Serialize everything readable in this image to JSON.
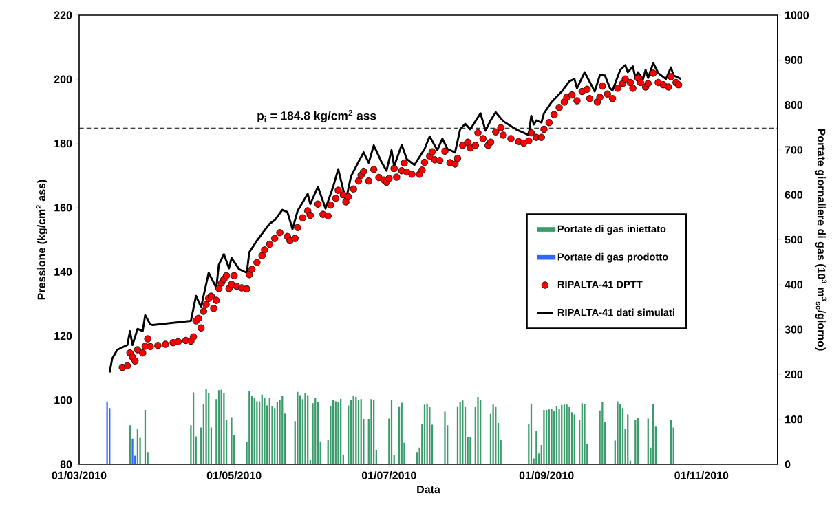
{
  "chart_data": {
    "type": "line",
    "xlabel": "Data",
    "ylabel": "Pressione (kg/cm$^{2}$ ass)",
    "y2label": "Portate giornaliere di gas (10$^{3}$ m$^{3}$$_{sc}$/giorno)",
    "xlim": [
      "2010-03-01",
      "2010-12-01"
    ],
    "xticks": [
      {
        "value": "2010-03-01",
        "label": "01/03/2010"
      },
      {
        "value": "2010-05-01",
        "label": "01/05/2010"
      },
      {
        "value": "2010-07-01",
        "label": "01/07/2010"
      },
      {
        "value": "2010-09-01",
        "label": "01/09/2010"
      },
      {
        "value": "2010-11-01",
        "label": "01/11/2010"
      }
    ],
    "ylim": [
      80,
      220
    ],
    "yticks": [
      80,
      100,
      120,
      140,
      160,
      180,
      200,
      220
    ],
    "y2lim": [
      0,
      1000
    ],
    "y2ticks": [
      0,
      100,
      200,
      300,
      400,
      500,
      600,
      700,
      800,
      900,
      1000
    ],
    "legend": "right",
    "ref_lines": [
      {
        "axis": "y",
        "value": 184.8,
        "label": "p$_{i}$ = 184.8 kg/cm$^{2}$ ass",
        "color": "#000000",
        "line_style": "dashed"
      }
    ],
    "series": [
      {
        "name": "Portate di gas iniettato",
        "type": "bar",
        "axis": "y2",
        "color": "#3a9b6b",
        "x": [
          "2010-03-21",
          "2010-03-24",
          "2010-03-25",
          "2010-03-27",
          "2010-03-28",
          "2010-04-14",
          "2010-04-15",
          "2010-04-16",
          "2010-04-18",
          "2010-04-19",
          "2010-04-20",
          "2010-04-21",
          "2010-04-22",
          "2010-04-24",
          "2010-04-25",
          "2010-04-26",
          "2010-04-27",
          "2010-04-28",
          "2010-04-30",
          "2010-05-01",
          "2010-05-06",
          "2010-05-07",
          "2010-05-08",
          "2010-05-09",
          "2010-05-10",
          "2010-05-11",
          "2010-05-12",
          "2010-05-13",
          "2010-05-14",
          "2010-05-15",
          "2010-05-16",
          "2010-05-17",
          "2010-05-18",
          "2010-05-19",
          "2010-05-20",
          "2010-05-21",
          "2010-05-25",
          "2010-05-26",
          "2010-05-27",
          "2010-05-28",
          "2010-05-29",
          "2010-05-30",
          "2010-05-31",
          "2010-06-01",
          "2010-06-02",
          "2010-06-03",
          "2010-06-04",
          "2010-06-07",
          "2010-06-08",
          "2010-06-09",
          "2010-06-10",
          "2010-06-11",
          "2010-06-12",
          "2010-06-13",
          "2010-06-15",
          "2010-06-16",
          "2010-06-17",
          "2010-06-18",
          "2010-06-19",
          "2010-06-20",
          "2010-06-21",
          "2010-06-23",
          "2010-06-24",
          "2010-06-25",
          "2010-06-26",
          "2010-07-01",
          "2010-07-02",
          "2010-07-03",
          "2010-07-05",
          "2010-07-06",
          "2010-07-07",
          "2010-07-12",
          "2010-07-13",
          "2010-07-14",
          "2010-07-15",
          "2010-07-16",
          "2010-07-17",
          "2010-07-18",
          "2010-07-23",
          "2010-07-24",
          "2010-07-28",
          "2010-07-29",
          "2010-07-30",
          "2010-07-31",
          "2010-08-01",
          "2010-08-02",
          "2010-08-04",
          "2010-08-05",
          "2010-08-06",
          "2010-08-10",
          "2010-08-11",
          "2010-08-12",
          "2010-08-13",
          "2010-08-14",
          "2010-08-25",
          "2010-08-26",
          "2010-08-27",
          "2010-08-28",
          "2010-08-29",
          "2010-08-30",
          "2010-08-31",
          "2010-09-01",
          "2010-09-02",
          "2010-09-03",
          "2010-09-04",
          "2010-09-05",
          "2010-09-06",
          "2010-09-07",
          "2010-09-08",
          "2010-09-09",
          "2010-09-10",
          "2010-09-11",
          "2010-09-12",
          "2010-09-14",
          "2010-09-15",
          "2010-09-16",
          "2010-09-17",
          "2010-09-22",
          "2010-09-23",
          "2010-09-24",
          "2010-09-28",
          "2010-09-29",
          "2010-09-30",
          "2010-10-01",
          "2010-10-02",
          "2010-10-03",
          "2010-10-04",
          "2010-10-06",
          "2010-10-07",
          "2010-10-11",
          "2010-10-12",
          "2010-10-13",
          "2010-10-14",
          "2010-10-20",
          "2010-10-21"
        ],
        "values": [
          87,
          79,
          59,
          121,
          27,
          87,
          160,
          62,
          82,
          134,
          168,
          159,
          82,
          145,
          165,
          166,
          159,
          99,
          105,
          65,
          50,
          163,
          153,
          147,
          140,
          140,
          155,
          148,
          131,
          148,
          130,
          125,
          138,
          143,
          152,
          113,
          96,
          161,
          154,
          145,
          159,
          154,
          9,
          136,
          148,
          138,
          51,
          55,
          130,
          144,
          140,
          139,
          146,
          21,
          131,
          144,
          152,
          150,
          144,
          145,
          101,
          101,
          145,
          143,
          32,
          102,
          144,
          21,
          129,
          137,
          48,
          27,
          37,
          89,
          133,
          135,
          127,
          88,
          117,
          87,
          129,
          139,
          142,
          129,
          61,
          61,
          127,
          150,
          144,
          112,
          133,
          129,
          92,
          54,
          89,
          135,
          13,
          75,
          24,
          43,
          121,
          121,
          122,
          124,
          118,
          130,
          123,
          132,
          133,
          133,
          128,
          116,
          111,
          98,
          136,
          134,
          46,
          120,
          138,
          95,
          53,
          140,
          134,
          125,
          78,
          111,
          8,
          99,
          104,
          102,
          37,
          134,
          84,
          99,
          82
        ]
      },
      {
        "name": "Portate di gas prodotto",
        "type": "bar",
        "axis": "y2",
        "color": "#3366ff",
        "x": [
          "2010-03-12",
          "2010-03-13",
          "2010-03-22",
          "2010-03-23"
        ],
        "values": [
          140,
          125,
          57,
          19
        ]
      },
      {
        "name": "RIPALTA-41 DPTT",
        "type": "scatter",
        "marker": "circle",
        "color": "#ff0000",
        "x": [
          "2010-03-18",
          "2010-03-20",
          "2010-03-21",
          "2010-03-22",
          "2010-03-23",
          "2010-03-24",
          "2010-03-26",
          "2010-03-27",
          "2010-03-28",
          "2010-03-29",
          "2010-04-01",
          "2010-04-04",
          "2010-04-07",
          "2010-04-09",
          "2010-04-12",
          "2010-04-14",
          "2010-04-15",
          "2010-04-16",
          "2010-04-17",
          "2010-04-18",
          "2010-04-19",
          "2010-04-20",
          "2010-04-21",
          "2010-04-22",
          "2010-04-23",
          "2010-04-24",
          "2010-04-25",
          "2010-04-26",
          "2010-04-27",
          "2010-04-28",
          "2010-04-29",
          "2010-04-30",
          "2010-05-01",
          "2010-05-02",
          "2010-05-04",
          "2010-05-06",
          "2010-05-07",
          "2010-05-08",
          "2010-05-10",
          "2010-05-12",
          "2010-05-13",
          "2010-05-15",
          "2010-05-17",
          "2010-05-19",
          "2010-05-22",
          "2010-05-23",
          "2010-05-25",
          "2010-05-26",
          "2010-05-28",
          "2010-05-30",
          "2010-05-31",
          "2010-06-03",
          "2010-06-05",
          "2010-06-07",
          "2010-06-08",
          "2010-06-10",
          "2010-06-11",
          "2010-06-13",
          "2010-06-14",
          "2010-06-15",
          "2010-06-17",
          "2010-06-19",
          "2010-06-20",
          "2010-06-21",
          "2010-06-23",
          "2010-06-25",
          "2010-06-27",
          "2010-06-29",
          "2010-06-30",
          "2010-07-01",
          "2010-07-03",
          "2010-07-04",
          "2010-07-06",
          "2010-07-07",
          "2010-07-08",
          "2010-07-10",
          "2010-07-13",
          "2010-07-14",
          "2010-07-15",
          "2010-07-17",
          "2010-07-18",
          "2010-07-19",
          "2010-07-21",
          "2010-07-23",
          "2010-07-25",
          "2010-07-27",
          "2010-07-28",
          "2010-07-30",
          "2010-08-01",
          "2010-08-02",
          "2010-08-04",
          "2010-08-05",
          "2010-08-07",
          "2010-08-09",
          "2010-08-10",
          "2010-08-12",
          "2010-08-14",
          "2010-08-15",
          "2010-08-18",
          "2010-08-21",
          "2010-08-23",
          "2010-08-25",
          "2010-08-26",
          "2010-08-28",
          "2010-08-30",
          "2010-08-31",
          "2010-09-02",
          "2010-09-04",
          "2010-09-06",
          "2010-09-08",
          "2010-09-09",
          "2010-09-11",
          "2010-09-13",
          "2010-09-15",
          "2010-09-17",
          "2010-09-18",
          "2010-09-21",
          "2010-09-22",
          "2010-09-23",
          "2010-09-25",
          "2010-09-27",
          "2010-09-29",
          "2010-10-01",
          "2010-10-02",
          "2010-10-04",
          "2010-10-05",
          "2010-10-07",
          "2010-10-08",
          "2010-10-10",
          "2010-10-11",
          "2010-10-13",
          "2010-10-15",
          "2010-10-17",
          "2010-10-19",
          "2010-10-20",
          "2010-10-22",
          "2010-10-23"
        ],
        "values": [
          110.2,
          110.7,
          114.7,
          113.4,
          112.2,
          115.7,
          114.7,
          116.8,
          119.1,
          116.7,
          117.0,
          117.4,
          117.9,
          118.2,
          118.6,
          118.4,
          119.7,
          124.7,
          125.5,
          122.5,
          127.7,
          129.8,
          131.7,
          132.4,
          128.6,
          131.1,
          134.8,
          136.5,
          137.7,
          138.8,
          134.8,
          136.1,
          138.8,
          135.5,
          135.0,
          134.7,
          139.1,
          140.8,
          142.9,
          145.0,
          146.8,
          148.6,
          150.4,
          152.2,
          151.0,
          149.7,
          150.4,
          153.8,
          156.8,
          159.0,
          157.6,
          161.1,
          157.9,
          157.4,
          160.8,
          162.9,
          165.4,
          164.0,
          161.8,
          163.4,
          165.8,
          168.3,
          170.1,
          171.3,
          168.3,
          171.9,
          169.4,
          168.6,
          167.9,
          169.1,
          172.2,
          169.5,
          171.5,
          173.9,
          171.1,
          170.4,
          170.4,
          171.7,
          174.1,
          176.1,
          177.4,
          174.9,
          174.7,
          177.6,
          174.0,
          173.6,
          175.4,
          179.4,
          180.4,
          178.6,
          179.4,
          183.3,
          181.5,
          179.4,
          180.4,
          183.6,
          184.9,
          182.6,
          181.5,
          180.6,
          180.1,
          180.8,
          183.3,
          181.9,
          181.9,
          184.4,
          186.5,
          189.0,
          191.2,
          192.9,
          194.4,
          195.1,
          193.3,
          196.2,
          196.9,
          194.0,
          192.9,
          194.4,
          197.9,
          195.4,
          194.0,
          197.2,
          198.7,
          200.1,
          199.0,
          197.2,
          200.4,
          199.0,
          197.6,
          198.7,
          201.9,
          199.0,
          198.3,
          197.6,
          200.8,
          199.0,
          198.3
        ]
      },
      {
        "name": "RIPALTA-41 dati simulati",
        "marker": "none",
        "color": "#000000",
        "x": [
          "2010-03-13",
          "2010-03-14",
          "2010-03-16",
          "2010-03-20",
          "2010-03-21",
          "2010-03-22",
          "2010-03-24",
          "2010-03-26",
          "2010-03-27",
          "2010-03-29",
          "2010-03-30",
          "2010-04-14",
          "2010-04-16",
          "2010-04-18",
          "2010-04-21",
          "2010-04-24",
          "2010-04-25",
          "2010-04-27",
          "2010-04-29",
          "2010-04-30",
          "2010-05-03",
          "2010-05-06",
          "2010-05-07",
          "2010-05-10",
          "2010-05-13",
          "2010-05-15",
          "2010-05-17",
          "2010-05-20",
          "2010-05-22",
          "2010-05-24",
          "2010-05-26",
          "2010-05-30",
          "2010-05-31",
          "2010-06-03",
          "2010-06-06",
          "2010-06-09",
          "2010-06-11",
          "2010-06-14",
          "2010-06-16",
          "2010-06-19",
          "2010-06-21",
          "2010-06-23",
          "2010-06-25",
          "2010-06-28",
          "2010-06-30",
          "2010-07-02",
          "2010-07-03",
          "2010-07-06",
          "2010-07-08",
          "2010-07-11",
          "2010-07-15",
          "2010-07-17",
          "2010-07-20",
          "2010-07-22",
          "2010-07-24",
          "2010-07-27",
          "2010-07-29",
          "2010-07-31",
          "2010-08-02",
          "2010-08-06",
          "2010-08-08",
          "2010-08-10",
          "2010-08-12",
          "2010-08-15",
          "2010-08-20",
          "2010-08-25",
          "2010-08-26",
          "2010-08-27",
          "2010-08-28",
          "2010-08-30",
          "2010-08-31",
          "2010-09-03",
          "2010-09-07",
          "2010-09-10",
          "2010-09-12",
          "2010-09-13",
          "2010-09-16",
          "2010-09-20",
          "2010-09-22",
          "2010-09-24",
          "2010-09-26",
          "2010-09-27",
          "2010-09-30",
          "2010-10-02",
          "2010-10-03",
          "2010-10-05",
          "2010-10-06",
          "2010-10-07",
          "2010-10-09",
          "2010-10-10",
          "2010-10-11",
          "2010-10-13",
          "2010-10-15",
          "2010-10-18",
          "2010-10-20",
          "2010-10-21",
          "2010-10-24"
        ],
        "values": [
          108.6,
          112.9,
          115.7,
          117.2,
          121.5,
          117.2,
          122.2,
          121.5,
          126.5,
          123.6,
          123.4,
          124.7,
          132.5,
          129.0,
          139.7,
          135.0,
          142.2,
          145.5,
          141.1,
          144.3,
          140.8,
          139.7,
          146.1,
          149.7,
          152.9,
          155.0,
          156.1,
          159.3,
          158.6,
          153.3,
          159.0,
          164.3,
          161.1,
          166.5,
          159.7,
          166.5,
          172.0,
          162.2,
          169.7,
          174.3,
          177.2,
          174.0,
          179.4,
          174.3,
          171.5,
          177.9,
          172.9,
          179.6,
          175.1,
          173.3,
          178.3,
          182.2,
          177.9,
          181.5,
          178.3,
          177.2,
          184.4,
          186.1,
          184.4,
          189.4,
          184.0,
          187.2,
          189.7,
          186.9,
          184.4,
          182.6,
          188.6,
          185.9,
          187.2,
          186.5,
          189.4,
          192.9,
          196.2,
          199.4,
          200.1,
          197.2,
          202.2,
          196.2,
          201.3,
          201.2,
          197.2,
          196.5,
          202.9,
          204.4,
          202.2,
          204.0,
          200.4,
          202.2,
          200.1,
          202.9,
          200.4,
          205.1,
          201.9,
          200.1,
          203.7,
          201.2,
          200.1
        ]
      }
    ]
  }
}
